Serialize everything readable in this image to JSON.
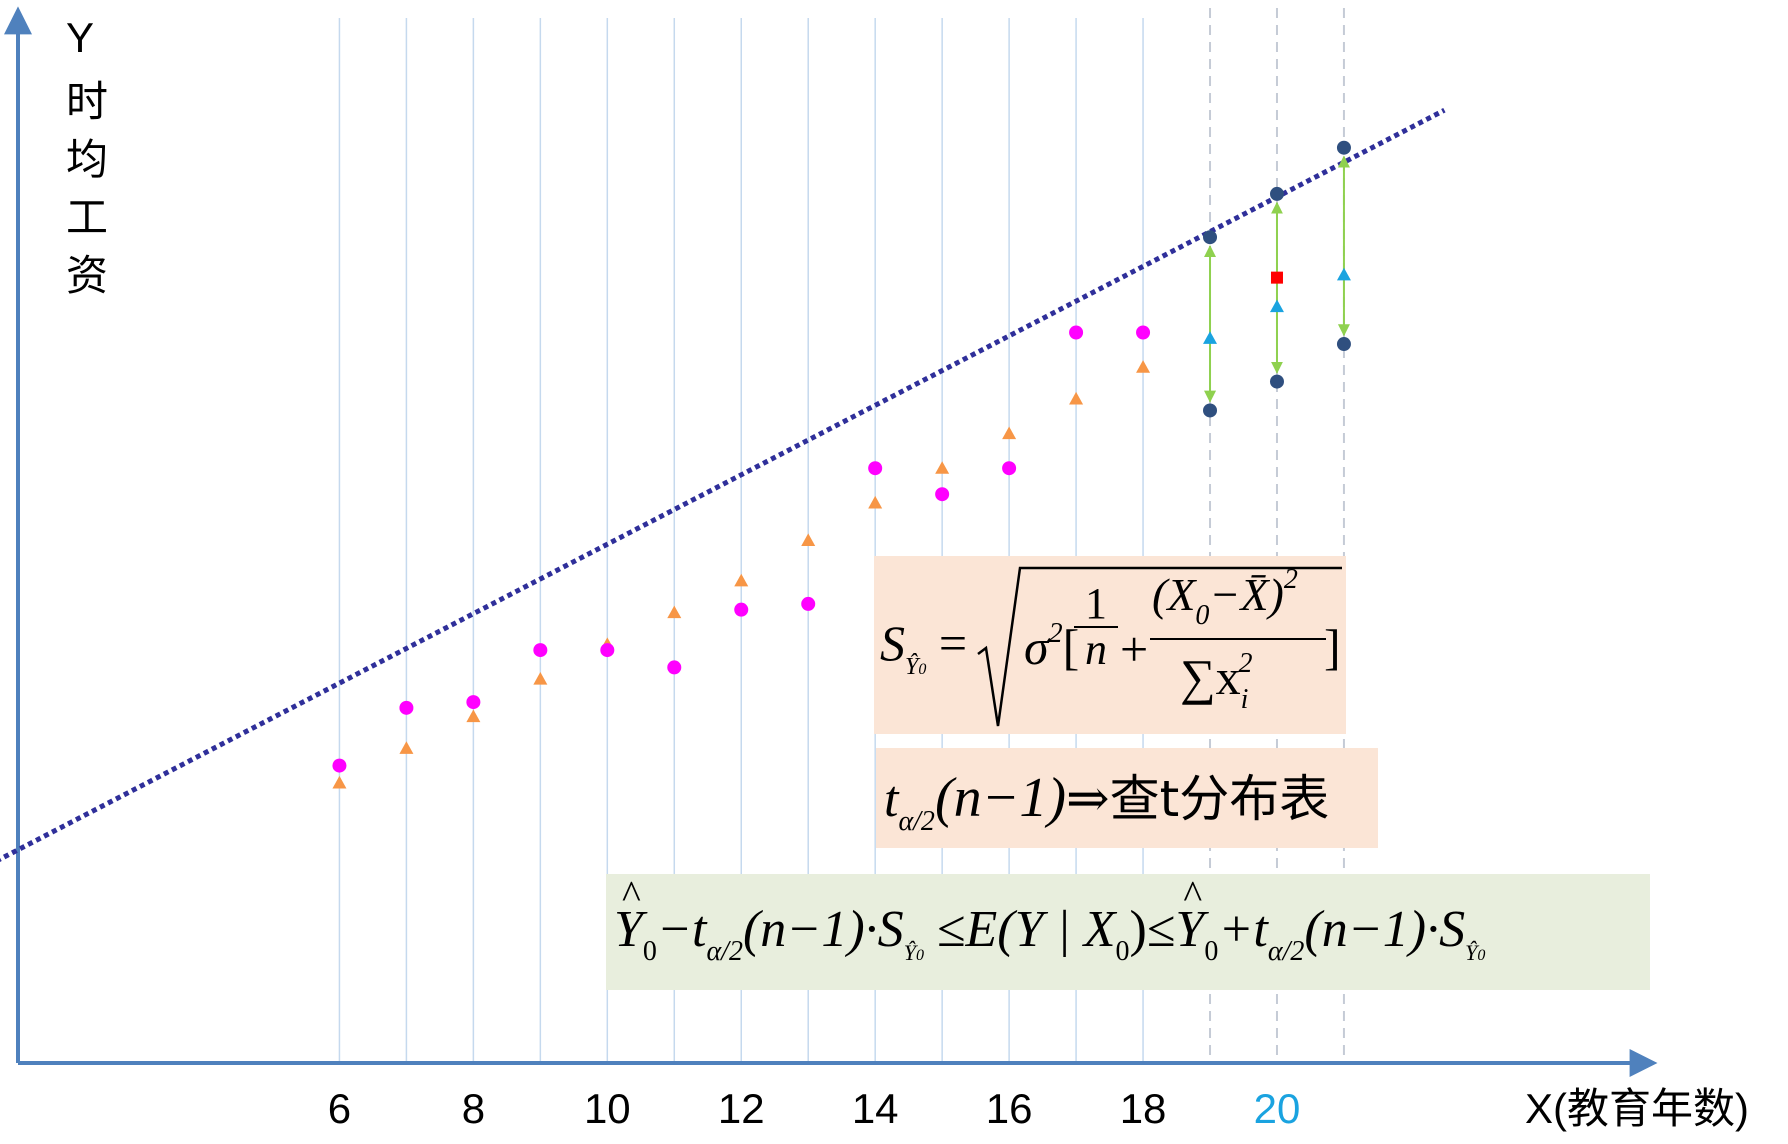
{
  "chart_data": {
    "type": "scatter",
    "x_ticks": [
      "6",
      "8",
      "10",
      "12",
      "14",
      "16",
      "18",
      "20"
    ],
    "x_tick_values": [
      6,
      8,
      10,
      12,
      14,
      16,
      18,
      20
    ],
    "highlight_tick": "20",
    "xlabel": "X(教育年数)",
    "ylabel": "Y",
    "ylabel_chars": [
      "时",
      "均",
      "工",
      "资"
    ],
    "xlim": [
      1.2,
      25.6
    ],
    "ylim": [
      0,
      36.4
    ],
    "observed": [
      [
        6,
        10.3
      ],
      [
        7,
        12.3
      ],
      [
        8,
        12.5
      ],
      [
        9,
        14.3
      ],
      [
        10,
        14.3
      ],
      [
        11,
        13.7
      ],
      [
        12,
        15.7
      ],
      [
        13,
        15.9
      ],
      [
        14,
        20.6
      ],
      [
        15,
        19.7
      ],
      [
        16,
        20.6
      ],
      [
        17,
        25.3
      ],
      [
        18,
        25.3
      ]
    ],
    "fitted": [
      [
        6,
        9.7
      ],
      [
        7,
        10.9
      ],
      [
        8,
        12.0
      ],
      [
        9,
        13.3
      ],
      [
        10,
        14.5
      ],
      [
        11,
        15.6
      ],
      [
        12,
        16.7
      ],
      [
        13,
        18.1
      ],
      [
        14,
        19.4
      ],
      [
        15,
        20.6
      ],
      [
        16,
        21.8
      ],
      [
        17,
        23.0
      ],
      [
        18,
        24.1
      ]
    ],
    "regression_line": [
      [
        -0.2,
        5.7
      ],
      [
        22.5,
        33.0
      ]
    ],
    "predicted": [
      [
        19,
        25.1
      ],
      [
        20,
        26.2
      ],
      [
        21,
        27.3
      ]
    ],
    "interval_upper": [
      [
        19,
        28.6
      ],
      [
        20,
        30.1
      ],
      [
        21,
        31.7
      ]
    ],
    "interval_lower": [
      [
        19,
        22.6
      ],
      [
        20,
        23.6
      ],
      [
        21,
        24.9
      ]
    ],
    "actual_point": [
      20,
      27.2
    ],
    "colors": {
      "axis": "#4f81bd",
      "gridline": "#c5d9ee",
      "dashed": "#c5cbd6",
      "observed": "#ff00ff",
      "fitted": "#f79646",
      "regression_line": "#2f2f9a",
      "predicted": "#1aa3e0",
      "interval_point": "#2f4f7f",
      "interval_arrow": "#8fd14f",
      "actual_point": "#ff0000"
    }
  },
  "formulas": {
    "se": {
      "lhs": "S",
      "lhs_sub": "Ŷ",
      "lhs_sub_sub": "0",
      "eq": "=",
      "sqrt": "√",
      "sigma": "σ",
      "sigma_sup": "2",
      "open": "[",
      "frac1_num": "1",
      "frac1_den": "n",
      "plus": "+",
      "frac2_num": "(X",
      "frac2_num_sub": "0",
      "frac2_num_tail": "−X̄)",
      "frac2_num_sup": "2",
      "frac2_den": "∑x",
      "frac2_den_sub": "i",
      "frac2_den_sup": "2",
      "close": "]"
    },
    "t": {
      "t": "t",
      "t_sub": "α/2",
      "arg": "(n−1)",
      "arrow": "⇒",
      "text": "查t分布表"
    },
    "ci": {
      "y": "Y",
      "y_sub": "0",
      "minus_t": "−t",
      "t_sub": "α/2",
      "arg": "(n−1)·S",
      "s_sub": "Ŷ",
      "s_sub_sub": "0",
      "le": "≤",
      "e": "E(Y | X",
      "e_sub": "0",
      "e_close": ")",
      "plus_t": "+t"
    }
  }
}
